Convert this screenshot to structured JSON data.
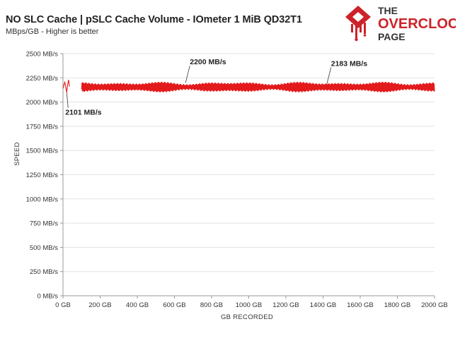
{
  "header": {
    "title": "NO SLC Cache | pSLC Cache Volume - IOmeter 1 MiB QD32T1",
    "subtitle": "MBps/GB - Higher is better"
  },
  "logo": {
    "line1": "THE",
    "line2": "OVERCLOCK",
    "line3": "PAGE",
    "colors": {
      "red": "#cc2229",
      "dark": "#333333"
    }
  },
  "chart_data": {
    "type": "line",
    "xlabel": "GB RECORDED",
    "ylabel": "SPEED",
    "xlim": [
      0,
      2000
    ],
    "ylim": [
      0,
      2500
    ],
    "x_ticks": [
      "0 GB",
      "200 GB",
      "400 GB",
      "600 GB",
      "800 GB",
      "1000 GB",
      "1200 GB",
      "1400 GB",
      "1600 GB",
      "1800 GB",
      "2000 GB"
    ],
    "y_ticks": [
      "0 MB/s",
      "250 MB/s",
      "500 MB/s",
      "750 MB/s",
      "1000 MB/s",
      "1250 MB/s",
      "1500 MB/s",
      "1750 MB/s",
      "2000 MB/s",
      "2250 MB/s",
      "2500 MB/s"
    ],
    "grid": "horizontal",
    "series_color": "#e31a1c",
    "series": [
      {
        "profile": {
          "gap": [
            35,
            100
          ],
          "oscillation_center": 2155,
          "oscillation_amplitude": 50,
          "average": 2183
        },
        "values": [
          [
            0,
            2140
          ],
          [
            5,
            2180
          ],
          [
            10,
            2205
          ],
          [
            15,
            2150
          ],
          [
            20,
            2101
          ],
          [
            25,
            2180
          ],
          [
            30,
            2230
          ],
          [
            35,
            2160
          ],
          [
            100,
            2135
          ],
          [
            102,
            2200
          ],
          [
            104,
            2110
          ],
          [
            106,
            2205
          ]
        ]
      }
    ],
    "annotations": [
      {
        "text": "2101 MB/s",
        "x": 20,
        "y": 2101
      },
      {
        "text": "2200 MB/s",
        "x": 660,
        "y": 2200
      },
      {
        "text": "2183 MB/s",
        "x": 1420,
        "y": 2183
      }
    ]
  }
}
